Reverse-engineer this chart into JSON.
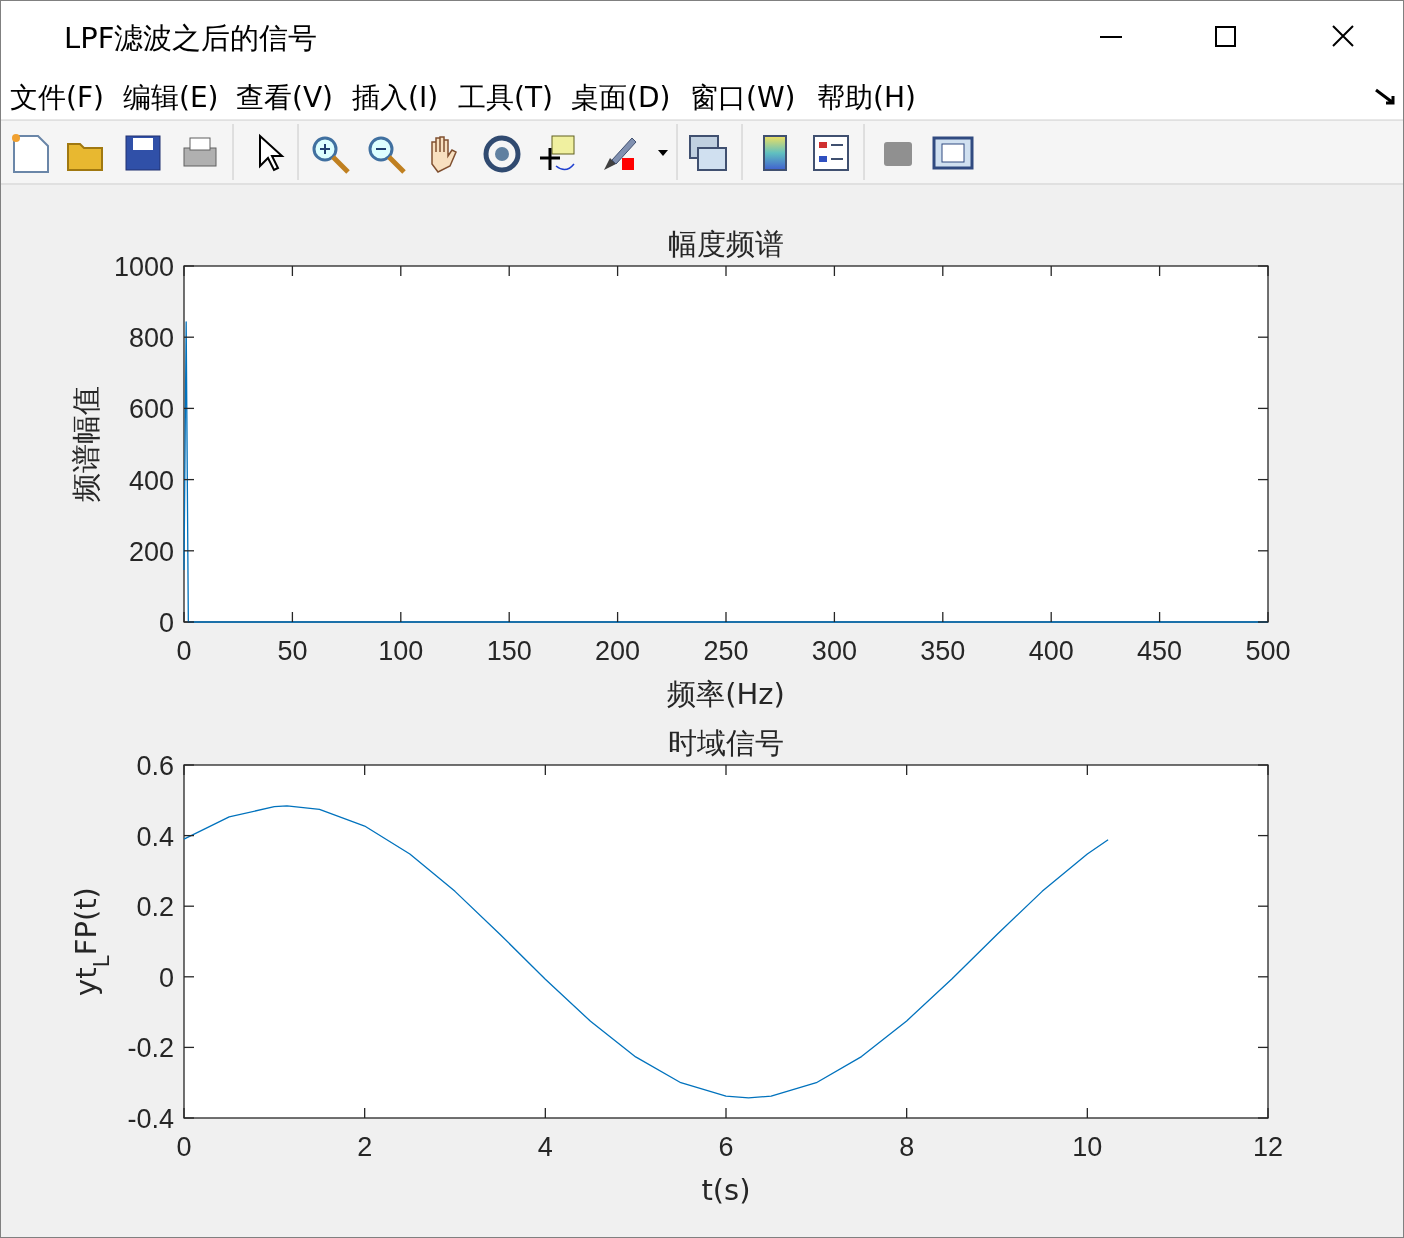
{
  "chart_data": [
    {
      "type": "other",
      "title": "LPF滤波之后的信号",
      "annotations": [
        "文件(F)",
        "编辑(E)",
        "查看(V)",
        "插入(I)",
        "工具(T)",
        "桌面(D)",
        "窗口(W)",
        "帮助(H)"
      ]
    },
    {
      "type": "line",
      "title": "幅度频谱",
      "xlabel": "频率(Hz)",
      "ylabel": "频谱幅值",
      "x": [
        0,
        1,
        2,
        500
      ],
      "series": [
        {
          "color": "#0072bd",
          "values": [
            146,
            843,
            0,
            0
          ]
        }
      ],
      "xlim": [
        0,
        500
      ],
      "xticks": [
        0,
        50,
        100,
        150,
        200,
        250,
        300,
        350,
        400,
        450,
        500
      ],
      "ylim": [
        0,
        1000
      ],
      "yticks": [
        0,
        200,
        400,
        600,
        800,
        1000
      ],
      "grid": false
    },
    {
      "type": "line",
      "title": "时域信号",
      "xlabel": "t(s)",
      "ylabel": "yt$_{L}$FP(t)",
      "x": [
        0,
        0.5,
        1,
        1.14,
        1.5,
        2,
        2.5,
        3,
        3.5,
        4,
        4.5,
        5,
        5.5,
        6,
        6.25,
        6.5,
        7,
        7.5,
        8,
        8.5,
        9,
        9.5,
        10,
        10.23
      ],
      "series": [
        {
          "color": "#0072bd",
          "values": [
            0.39,
            0.453,
            0.482,
            0.484,
            0.474,
            0.427,
            0.348,
            0.242,
            0.12,
            -0.007,
            -0.126,
            -0.227,
            -0.3,
            -0.338,
            -0.343,
            -0.338,
            -0.3,
            -0.226,
            -0.125,
            -0.006,
            0.12,
            0.242,
            0.348,
            0.388
          ]
        }
      ],
      "xlim": [
        0,
        12
      ],
      "xticks": [
        0,
        2,
        4,
        6,
        8,
        10,
        12
      ],
      "ylim": [
        -0.4,
        0.6
      ],
      "yticks": [
        -0.4,
        -0.2,
        0,
        0.2,
        0.4,
        0.6
      ],
      "grid": false
    }
  ]
}
